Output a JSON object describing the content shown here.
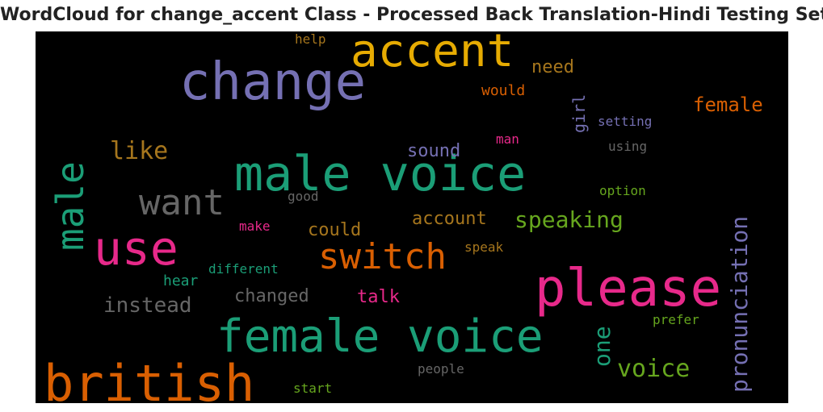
{
  "title": "WordCloud for change_accent Class - Processed Back Translation-Hindi Testing Set",
  "colors": {
    "background": "#000000",
    "purple": "#7570b3",
    "orange": "#d95f02",
    "teal": "#1b9e77",
    "magenta": "#e7298a",
    "olive_green": "#66a61e",
    "gold": "#e6ab02",
    "brown": "#a6761d",
    "gray": "#666666"
  },
  "words": {
    "change": "change",
    "accent": "accent",
    "male_voice": "male voice",
    "male": "male",
    "want": "want",
    "use": "use",
    "please": "please",
    "female_voice": "female voice",
    "british": "british",
    "switch": "switch",
    "speaking": "speaking",
    "pronunciation": "pronunciation",
    "voice": "voice",
    "one": "one",
    "like": "like",
    "instead": "instead",
    "changed": "changed",
    "talk": "talk",
    "account": "account",
    "could": "could",
    "sound": "sound",
    "female": "female",
    "girl": "girl",
    "need": "need",
    "would": "would",
    "help": "help",
    "setting": "setting",
    "using": "using",
    "man": "man",
    "good": "good",
    "option": "option",
    "make": "make",
    "different": "different",
    "hear": "hear",
    "speak": "speak",
    "prefer": "prefer",
    "people": "people",
    "start": "start"
  }
}
